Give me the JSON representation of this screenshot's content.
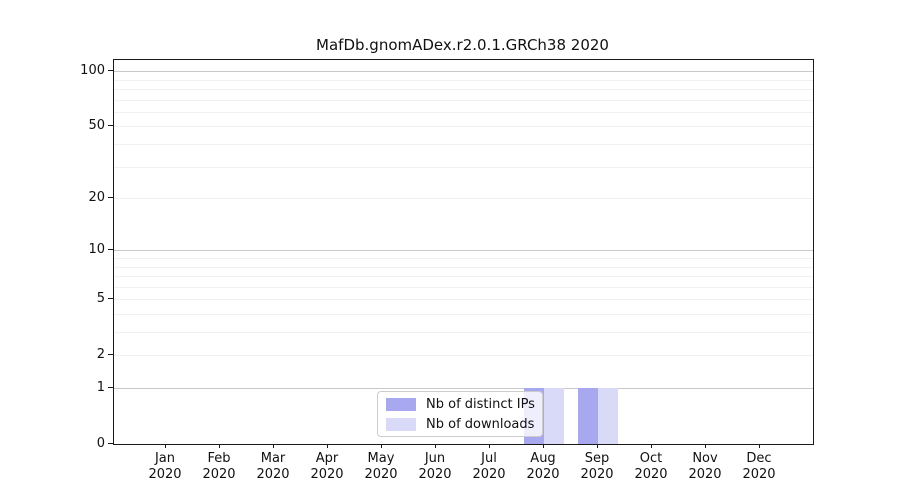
{
  "chart_data": {
    "type": "bar",
    "title": "MafDb.gnomADex.r2.0.1.GRCh38 2020",
    "categories": [
      "Jan",
      "Feb",
      "Mar",
      "Apr",
      "May",
      "Jun",
      "Jul",
      "Aug",
      "Sep",
      "Oct",
      "Nov",
      "Dec"
    ],
    "x_year": "2020",
    "series": [
      {
        "name": "Nb of distinct IPs",
        "color": "#a8a8f0",
        "values": [
          0,
          0,
          0,
          0,
          0,
          0,
          0,
          1,
          1,
          0,
          0,
          0
        ]
      },
      {
        "name": "Nb of downloads",
        "color": "#d9d9f8",
        "values": [
          0,
          0,
          0,
          0,
          0,
          0,
          0,
          1,
          1,
          0,
          0,
          0
        ]
      }
    ],
    "yscale": "log1p",
    "y_ticks": [
      0,
      1,
      2,
      5,
      10,
      20,
      50,
      100
    ],
    "y_minor_gridlines": [
      2,
      3,
      4,
      5,
      6,
      7,
      8,
      9,
      20,
      30,
      40,
      50,
      60,
      70,
      80,
      90
    ],
    "y_major_gridlines": [
      1,
      10,
      100
    ],
    "ylim": [
      0,
      115
    ],
    "grid": "horizontal",
    "legend_position": "lower center",
    "colors": {
      "axis": "#1a1a1a",
      "grid_major": "#c9c9c9",
      "grid_minor": "#f0f0f0",
      "legend_border": "#cccccc"
    }
  }
}
